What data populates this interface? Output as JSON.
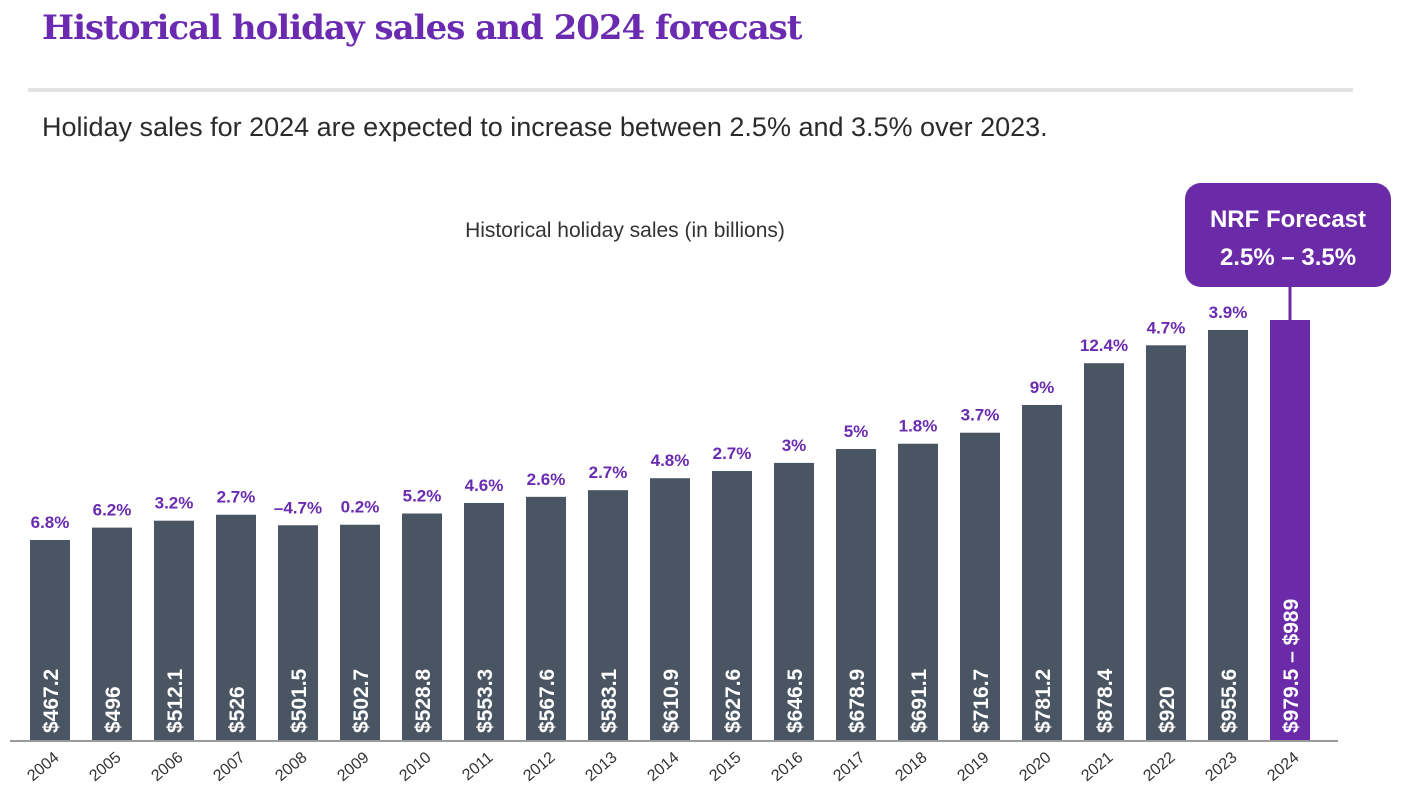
{
  "page": {
    "title": "Historical holiday sales and 2024 forecast",
    "subtitle": "Holiday sales for 2024 are expected to increase between 2.5% and 3.5% over 2023."
  },
  "colors": {
    "bar": "#4a5564",
    "forecast": "#6b2aa8",
    "accent": "#6a2bb0",
    "label_text": "#ffffff"
  },
  "chart_data": {
    "type": "bar",
    "title": "Historical holiday sales (in billions)",
    "xlabel": "",
    "ylabel": "",
    "ylim": [
      0,
      1000
    ],
    "categories": [
      "2004",
      "2005",
      "2006",
      "2007",
      "2008",
      "2009",
      "2010",
      "2011",
      "2012",
      "2013",
      "2014",
      "2015",
      "2016",
      "2017",
      "2018",
      "2019",
      "2020",
      "2021",
      "2022",
      "2023",
      "2024"
    ],
    "values": [
      467.2,
      496,
      512.1,
      526,
      501.5,
      502.7,
      528.8,
      553.3,
      567.6,
      583.1,
      610.9,
      627.6,
      646.5,
      678.9,
      691.1,
      716.7,
      781.2,
      878.4,
      920,
      955.6,
      989
    ],
    "value_labels": [
      "$467.2",
      "$496",
      "$512.1",
      "$526",
      "$501.5",
      "$502.7",
      "$528.8",
      "$553.3",
      "$567.6",
      "$583.1",
      "$610.9",
      "$627.6",
      "$646.5",
      "$678.9",
      "$691.1",
      "$716.7",
      "$781.2",
      "$878.4",
      "$920",
      "$955.6",
      "$979.5 – $989"
    ],
    "growth_labels": [
      "6.8%",
      "6.2%",
      "3.2%",
      "2.7%",
      "–4.7%",
      "0.2%",
      "5.2%",
      "4.6%",
      "2.6%",
      "2.7%",
      "4.8%",
      "2.7%",
      "3%",
      "5%",
      "1.8%",
      "3.7%",
      "9%",
      "12.4%",
      "4.7%",
      "3.9%",
      ""
    ],
    "forecast": {
      "year": "2024",
      "range_low": 979.5,
      "range_high": 989,
      "callout_line1": "NRF Forecast",
      "callout_line2": "2.5% – 3.5%"
    }
  }
}
